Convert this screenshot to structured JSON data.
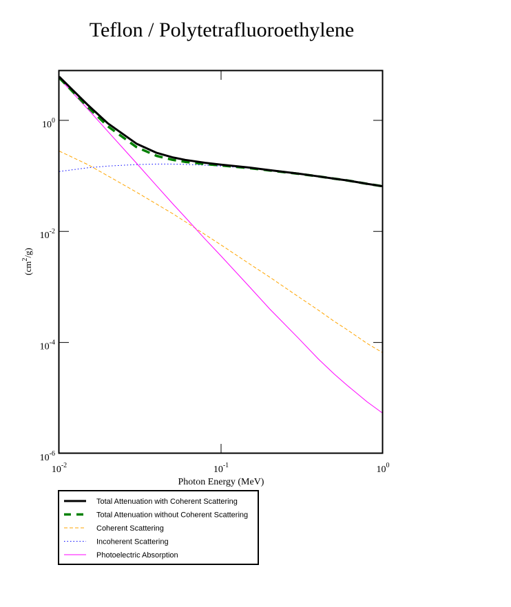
{
  "chart_data": {
    "type": "line",
    "title": "Teflon / Polytetrafluoroethylene",
    "xlabel": "Photon Energy (MeV)",
    "ylabel": {
      "prefix": "(cm",
      "exp": "2",
      "suffix": "/g)"
    },
    "xscale": "log",
    "yscale": "log",
    "xlim": [
      0.01,
      1.0
    ],
    "ylim": [
      1e-06,
      8.0
    ],
    "grid": false,
    "legend_placement": "below-left",
    "x_ticks": [
      {
        "value": 0.01,
        "base": "10",
        "exp": "-2"
      },
      {
        "value": 0.1,
        "base": "10",
        "exp": "-1"
      },
      {
        "value": 1.0,
        "base": "10",
        "exp": "0"
      }
    ],
    "y_ticks": [
      {
        "value": 1e-06,
        "base": "10",
        "exp": "-6"
      },
      {
        "value": 0.0001,
        "base": "10",
        "exp": "-4"
      },
      {
        "value": 0.01,
        "base": "10",
        "exp": "-2"
      },
      {
        "value": 1.0,
        "base": "10",
        "exp": "0"
      }
    ],
    "x": [
      0.01,
      0.015,
      0.02,
      0.03,
      0.04,
      0.05,
      0.06,
      0.08,
      0.1,
      0.15,
      0.2,
      0.3,
      0.4,
      0.5,
      0.6,
      0.8,
      1.0
    ],
    "series": [
      {
        "name": "Total Attenuation with Coherent Scattering",
        "color": "#000000",
        "style": "solid-thick",
        "values": [
          6.1,
          1.9,
          0.88,
          0.381,
          0.26,
          0.216,
          0.194,
          0.172,
          0.159,
          0.141,
          0.127,
          0.11,
          0.098,
          0.089,
          0.083,
          0.072,
          0.065
        ]
      },
      {
        "name": "Total Attenuation without Coherent Scattering",
        "color": "#008000",
        "style": "dashed-thick",
        "values": [
          5.82,
          1.74,
          0.78,
          0.33,
          0.229,
          0.195,
          0.179,
          0.163,
          0.154,
          0.138,
          0.125,
          0.109,
          0.098,
          0.089,
          0.083,
          0.072,
          0.065
        ]
      },
      {
        "name": "Coherent Scattering",
        "color": "#FFA500",
        "style": "dashed",
        "values": [
          0.28,
          0.16,
          0.1,
          0.051,
          0.031,
          0.021,
          0.015,
          0.0087,
          0.0057,
          0.0026,
          0.0015,
          0.00067,
          0.00038,
          0.00024,
          0.00017,
          9.6e-05,
          6.5e-05
        ]
      },
      {
        "name": "Incoherent Scattering",
        "color": "#0000FF",
        "style": "dotted",
        "values": [
          0.12,
          0.14,
          0.15,
          0.16,
          0.163,
          0.163,
          0.161,
          0.156,
          0.15,
          0.137,
          0.125,
          0.109,
          0.098,
          0.089,
          0.083,
          0.072,
          0.065
        ]
      },
      {
        "name": "Photoelectric Absorption",
        "color": "#FF00FF",
        "style": "solid",
        "values": [
          5.7,
          1.6,
          0.63,
          0.17,
          0.066,
          0.032,
          0.018,
          0.0072,
          0.0036,
          0.001,
          0.0004,
          0.00012,
          5e-05,
          2.7e-05,
          1.7e-05,
          8.5e-06,
          5.3e-06
        ]
      }
    ]
  }
}
